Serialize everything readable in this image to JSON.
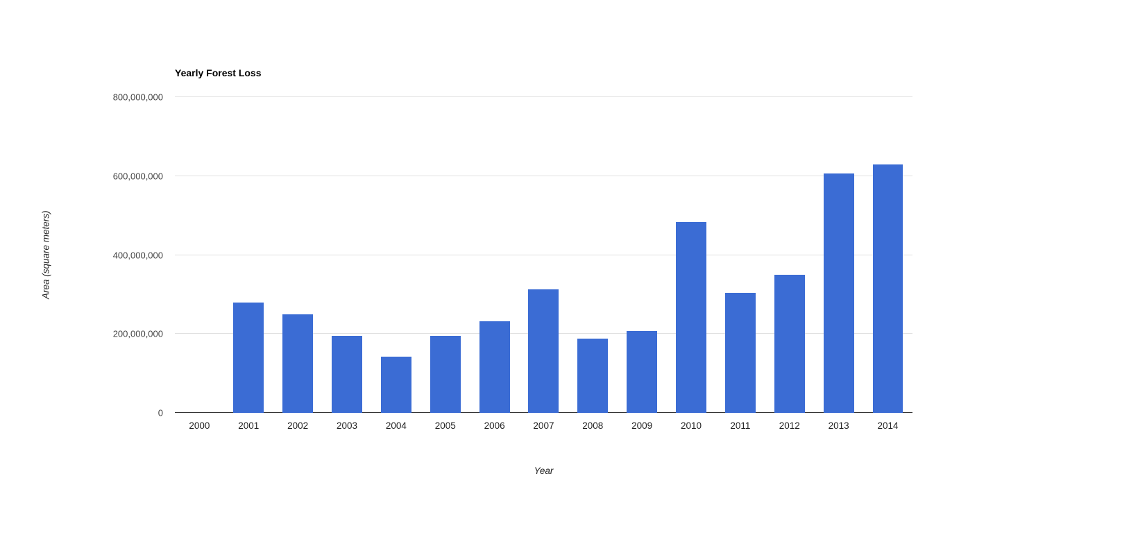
{
  "page": {
    "background_color": "#ffffff"
  },
  "chart_data": {
    "type": "bar",
    "title": "Yearly Forest Loss",
    "xlabel": "Year",
    "ylabel": "Area (square meters)",
    "categories": [
      "2000",
      "2001",
      "2002",
      "2003",
      "2004",
      "2005",
      "2006",
      "2007",
      "2008",
      "2009",
      "2010",
      "2011",
      "2012",
      "2013",
      "2014"
    ],
    "values": [
      0,
      280000000,
      250000000,
      195000000,
      142000000,
      195000000,
      232000000,
      313000000,
      188000000,
      207000000,
      483000000,
      305000000,
      350000000,
      607000000,
      630000000
    ],
    "ylim": [
      0,
      800000000
    ],
    "yticks": [
      {
        "value": 0,
        "label": "0"
      },
      {
        "value": 200000000,
        "label": "200,000,000"
      },
      {
        "value": 400000000,
        "label": "400,000,000"
      },
      {
        "value": 600000000,
        "label": "600,000,000"
      },
      {
        "value": 800000000,
        "label": "800,000,000"
      }
    ],
    "grid": true,
    "legend": "none",
    "bar_color": "#3b6cd4",
    "gridline_color": "#e0e0e0",
    "baseline_color": "#333333"
  }
}
